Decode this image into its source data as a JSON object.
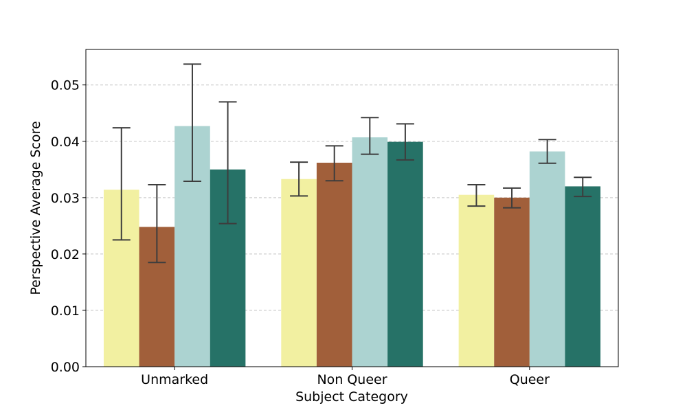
{
  "chart_data": {
    "type": "bar",
    "xlabel": "Subject Category",
    "ylabel": "Perspective Average Score",
    "categories": [
      "Unmarked",
      "Non Queer",
      "Queer"
    ],
    "ylim": [
      0,
      0.0563
    ],
    "yticks": [
      "0.00",
      "0.01",
      "0.02",
      "0.03",
      "0.04",
      "0.05"
    ],
    "grid": "horizontal dashed",
    "legend": "none",
    "series": [
      {
        "color": "#f2f0a1",
        "values": [
          0.0314,
          0.0333,
          0.0305
        ],
        "err_low": [
          0.0225,
          0.0303,
          0.0285
        ],
        "err_high": [
          0.0424,
          0.0363,
          0.0323
        ]
      },
      {
        "color": "#a15f3a",
        "values": [
          0.0248,
          0.0362,
          0.03
        ],
        "err_low": [
          0.0185,
          0.033,
          0.0282
        ],
        "err_high": [
          0.0323,
          0.0392,
          0.0317
        ]
      },
      {
        "color": "#acd3d1",
        "values": [
          0.0427,
          0.0407,
          0.0382
        ],
        "err_low": [
          0.0329,
          0.0377,
          0.0361
        ],
        "err_high": [
          0.0537,
          0.0442,
          0.0403
        ]
      },
      {
        "color": "#267267",
        "values": [
          0.035,
          0.0399,
          0.032
        ],
        "err_low": [
          0.0254,
          0.0367,
          0.0302
        ],
        "err_high": [
          0.047,
          0.0431,
          0.0336
        ]
      }
    ]
  }
}
